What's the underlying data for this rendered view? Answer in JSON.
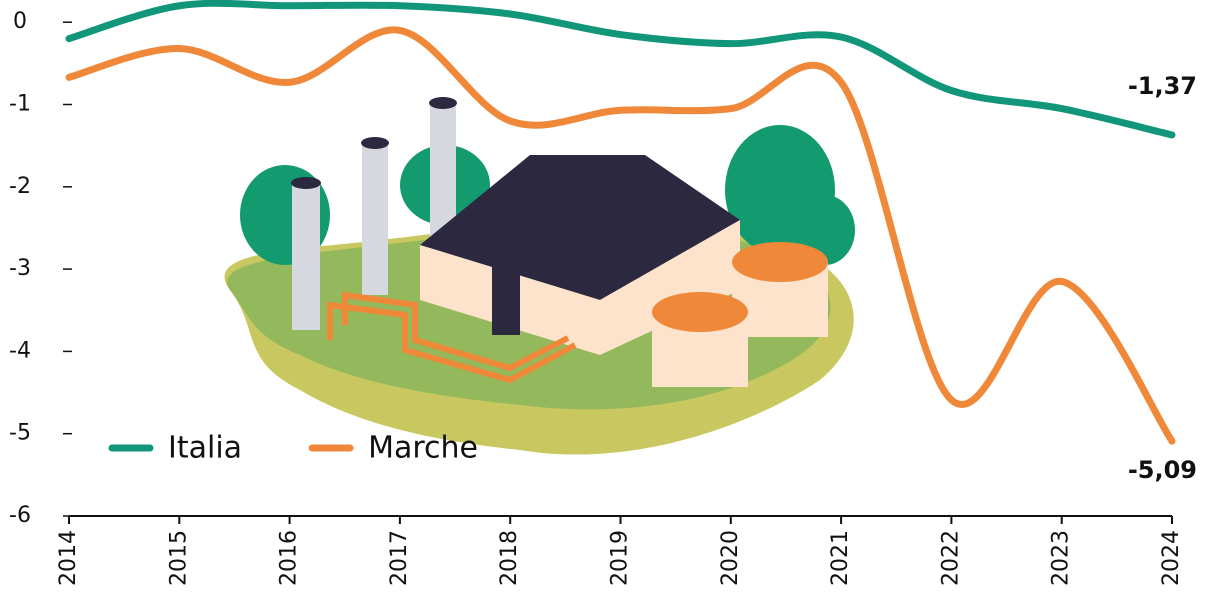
{
  "chart_data": {
    "type": "line",
    "categories": [
      "2014",
      "2015",
      "2016",
      "2017",
      "2018",
      "2019",
      "2020",
      "2021",
      "2022",
      "2023",
      "2024"
    ],
    "series": [
      {
        "name": "Italia",
        "color": "#12967a",
        "values": [
          -0.2,
          0.2,
          0.2,
          0.2,
          0.1,
          -0.15,
          -0.26,
          -0.18,
          -0.83,
          -1.05,
          -1.37
        ],
        "value_labels": [
          null,
          null,
          null,
          null,
          null,
          null,
          null,
          null,
          null,
          null,
          "-1,37"
        ]
      },
      {
        "name": "Marche",
        "color": "#f0883a",
        "values": [
          -0.67,
          -0.32,
          -0.73,
          -0.1,
          -1.2,
          -1.07,
          -1.05,
          -0.73,
          -4.59,
          -3.15,
          -5.09
        ],
        "value_labels": [
          null,
          null,
          null,
          null,
          null,
          null,
          null,
          null,
          null,
          null,
          "-5,09"
        ]
      }
    ],
    "ylim": [
      -6,
      0.25
    ],
    "yticks": [
      0,
      -1,
      -2,
      -3,
      -4,
      -5,
      -6
    ],
    "grid": false,
    "legend": "bottom-left"
  }
}
